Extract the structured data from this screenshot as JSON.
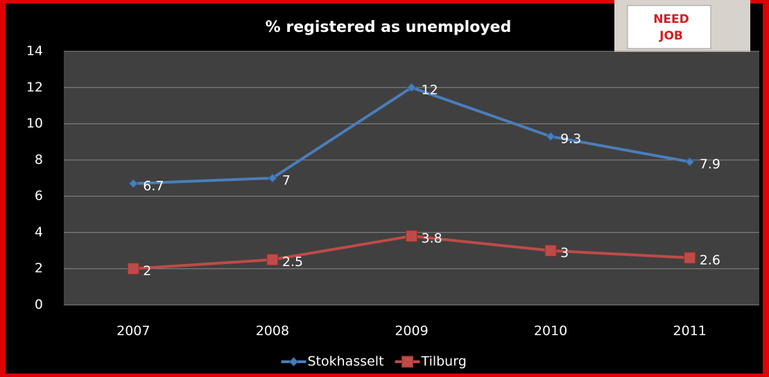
{
  "chart_data": {
    "type": "line",
    "title": "% registered as unemployed",
    "categories": [
      "2007",
      "2008",
      "2009",
      "2010",
      "2011"
    ],
    "series": [
      {
        "name": "Stokhasselt",
        "color": "#4a7ebb",
        "values": [
          6.7,
          7,
          12,
          9.3,
          7.9
        ]
      },
      {
        "name": "Tilburg",
        "color": "#be4b48",
        "values": [
          2,
          2.5,
          3.8,
          3,
          2.6
        ]
      }
    ],
    "ylim": [
      0,
      14
    ],
    "yticks": [
      0,
      2,
      4,
      6,
      8,
      10,
      12,
      14
    ],
    "grid": true,
    "legend": "bottom"
  },
  "image": {
    "sign_text": [
      "NEED",
      "JOB"
    ]
  }
}
